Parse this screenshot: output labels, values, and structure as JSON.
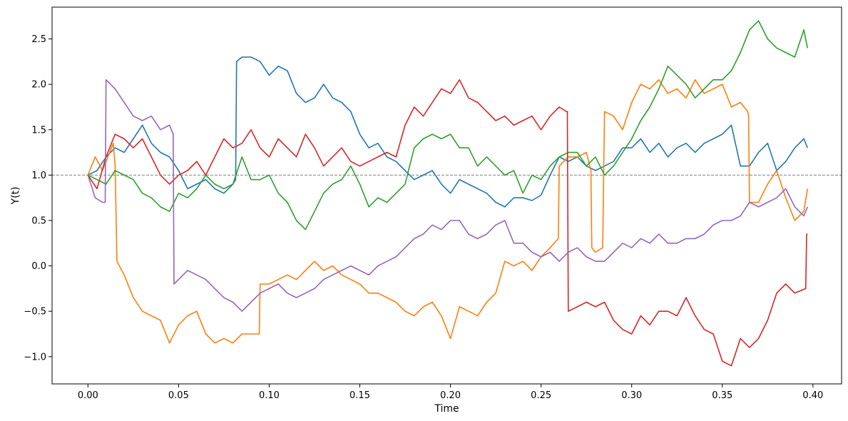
{
  "chart_data": {
    "type": "line",
    "xlabel": "Time",
    "ylabel": "Y(t)",
    "xlim": [
      -0.0198,
      0.4158
    ],
    "ylim": [
      -1.3,
      2.85
    ],
    "xticks": [
      0.0,
      0.05,
      0.1,
      0.15,
      0.2,
      0.25,
      0.3,
      0.35,
      0.4
    ],
    "xtick_labels": [
      "0.00",
      "0.05",
      "0.10",
      "0.15",
      "0.20",
      "0.25",
      "0.30",
      "0.35",
      "0.40"
    ],
    "yticks": [
      -1.0,
      -0.5,
      0.0,
      0.5,
      1.0,
      1.5,
      2.0,
      2.5
    ],
    "ytick_labels": [
      "−1.0",
      "−0.5",
      "0.0",
      "0.5",
      "1.0",
      "1.5",
      "2.0",
      "2.5"
    ],
    "reference_line": {
      "y": 1.0,
      "style": "dashed",
      "color": "#808080"
    },
    "grid": false,
    "series": [
      {
        "color": "#1f77b4",
        "x": [
          0.0,
          0.005,
          0.01,
          0.015,
          0.02,
          0.025,
          0.03,
          0.035,
          0.04,
          0.045,
          0.05,
          0.055,
          0.06,
          0.065,
          0.07,
          0.075,
          0.08,
          0.0815,
          0.082,
          0.085,
          0.09,
          0.095,
          0.1,
          0.105,
          0.11,
          0.115,
          0.12,
          0.125,
          0.13,
          0.135,
          0.14,
          0.145,
          0.15,
          0.155,
          0.16,
          0.165,
          0.17,
          0.175,
          0.18,
          0.185,
          0.19,
          0.195,
          0.2,
          0.205,
          0.21,
          0.215,
          0.22,
          0.225,
          0.23,
          0.235,
          0.24,
          0.245,
          0.25,
          0.255,
          0.26,
          0.265,
          0.27,
          0.275,
          0.28,
          0.285,
          0.29,
          0.295,
          0.3,
          0.305,
          0.31,
          0.315,
          0.32,
          0.325,
          0.33,
          0.335,
          0.34,
          0.345,
          0.35,
          0.355,
          0.36,
          0.365,
          0.37,
          0.375,
          0.38,
          0.385,
          0.39,
          0.395,
          0.397
        ],
        "y": [
          1.0,
          1.05,
          1.2,
          1.3,
          1.25,
          1.4,
          1.55,
          1.35,
          1.25,
          1.2,
          1.05,
          0.85,
          0.9,
          0.95,
          0.85,
          0.8,
          0.9,
          0.95,
          2.25,
          2.3,
          2.3,
          2.25,
          2.1,
          2.2,
          2.15,
          1.9,
          1.8,
          1.85,
          2.0,
          1.85,
          1.8,
          1.7,
          1.45,
          1.3,
          1.35,
          1.2,
          1.15,
          1.05,
          0.95,
          1.0,
          1.05,
          0.9,
          0.8,
          0.95,
          0.9,
          0.85,
          0.8,
          0.7,
          0.65,
          0.75,
          0.75,
          0.72,
          0.78,
          1.0,
          1.2,
          1.15,
          1.2,
          1.1,
          1.05,
          1.1,
          1.15,
          1.3,
          1.3,
          1.4,
          1.25,
          1.35,
          1.2,
          1.3,
          1.35,
          1.25,
          1.35,
          1.4,
          1.45,
          1.55,
          1.1,
          1.1,
          1.25,
          1.35,
          1.05,
          1.15,
          1.3,
          1.4,
          1.3
        ]
      },
      {
        "color": "#ff7f0e",
        "x": [
          0.0,
          0.004,
          0.008,
          0.012,
          0.014,
          0.015,
          0.016,
          0.02,
          0.025,
          0.03,
          0.035,
          0.04,
          0.045,
          0.05,
          0.055,
          0.06,
          0.065,
          0.07,
          0.075,
          0.08,
          0.085,
          0.0945,
          0.095,
          0.1,
          0.105,
          0.11,
          0.115,
          0.12,
          0.125,
          0.13,
          0.135,
          0.14,
          0.145,
          0.15,
          0.155,
          0.16,
          0.165,
          0.17,
          0.175,
          0.18,
          0.185,
          0.19,
          0.195,
          0.2,
          0.205,
          0.21,
          0.215,
          0.22,
          0.225,
          0.23,
          0.235,
          0.24,
          0.245,
          0.25,
          0.255,
          0.2595,
          0.26,
          0.265,
          0.27,
          0.275,
          0.2775,
          0.278,
          0.28,
          0.284,
          0.285,
          0.29,
          0.295,
          0.3,
          0.305,
          0.31,
          0.315,
          0.32,
          0.325,
          0.33,
          0.335,
          0.34,
          0.345,
          0.35,
          0.355,
          0.36,
          0.364,
          0.3645,
          0.365,
          0.37,
          0.375,
          0.38,
          0.385,
          0.39,
          0.395,
          0.397
        ],
        "y": [
          1.0,
          1.2,
          1.05,
          1.25,
          1.35,
          1.1,
          0.05,
          -0.1,
          -0.35,
          -0.5,
          -0.55,
          -0.6,
          -0.85,
          -0.65,
          -0.55,
          -0.5,
          -0.75,
          -0.85,
          -0.8,
          -0.85,
          -0.75,
          -0.75,
          -0.2,
          -0.2,
          -0.15,
          -0.1,
          -0.15,
          -0.05,
          0.05,
          -0.05,
          0.0,
          -0.1,
          -0.15,
          -0.2,
          -0.3,
          -0.3,
          -0.35,
          -0.4,
          -0.5,
          -0.55,
          -0.45,
          -0.4,
          -0.55,
          -0.8,
          -0.45,
          -0.5,
          -0.55,
          -0.4,
          -0.3,
          0.05,
          0.0,
          0.05,
          -0.05,
          0.1,
          0.2,
          0.3,
          1.1,
          1.2,
          1.2,
          1.25,
          1.05,
          0.2,
          0.15,
          0.2,
          1.7,
          1.65,
          1.5,
          1.8,
          2.0,
          1.95,
          2.05,
          1.9,
          1.95,
          1.85,
          2.05,
          1.9,
          1.95,
          2.0,
          1.75,
          1.8,
          1.7,
          1.65,
          0.7,
          0.7,
          0.9,
          1.05,
          0.75,
          0.5,
          0.6,
          0.85
        ]
      },
      {
        "color": "#2ca02c",
        "x": [
          0.0,
          0.005,
          0.01,
          0.015,
          0.02,
          0.025,
          0.03,
          0.035,
          0.04,
          0.045,
          0.05,
          0.055,
          0.06,
          0.065,
          0.07,
          0.075,
          0.08,
          0.085,
          0.09,
          0.095,
          0.1,
          0.105,
          0.11,
          0.115,
          0.12,
          0.125,
          0.13,
          0.135,
          0.14,
          0.145,
          0.15,
          0.155,
          0.16,
          0.165,
          0.17,
          0.175,
          0.18,
          0.185,
          0.19,
          0.195,
          0.2,
          0.205,
          0.21,
          0.215,
          0.22,
          0.225,
          0.23,
          0.235,
          0.24,
          0.245,
          0.25,
          0.255,
          0.26,
          0.265,
          0.27,
          0.275,
          0.28,
          0.285,
          0.29,
          0.295,
          0.3,
          0.305,
          0.31,
          0.315,
          0.32,
          0.325,
          0.33,
          0.335,
          0.34,
          0.345,
          0.35,
          0.355,
          0.36,
          0.365,
          0.37,
          0.375,
          0.38,
          0.385,
          0.39,
          0.395,
          0.397
        ],
        "y": [
          1.0,
          0.95,
          0.9,
          1.05,
          1.0,
          0.95,
          0.8,
          0.75,
          0.65,
          0.6,
          0.8,
          0.75,
          0.85,
          1.0,
          0.9,
          0.85,
          0.9,
          1.2,
          0.95,
          0.95,
          1.0,
          0.8,
          0.7,
          0.5,
          0.4,
          0.6,
          0.8,
          0.9,
          0.95,
          1.1,
          0.9,
          0.65,
          0.75,
          0.7,
          0.8,
          0.9,
          1.3,
          1.4,
          1.45,
          1.4,
          1.45,
          1.3,
          1.3,
          1.1,
          1.2,
          1.1,
          1.0,
          1.05,
          0.8,
          1.0,
          0.95,
          1.1,
          1.2,
          1.25,
          1.25,
          1.1,
          1.2,
          1.0,
          1.1,
          1.25,
          1.4,
          1.6,
          1.75,
          1.95,
          2.2,
          2.1,
          2.0,
          1.85,
          1.95,
          2.05,
          2.05,
          2.15,
          2.35,
          2.6,
          2.7,
          2.5,
          2.4,
          2.35,
          2.3,
          2.6,
          2.4
        ]
      },
      {
        "color": "#d62728",
        "x": [
          0.0,
          0.005,
          0.01,
          0.015,
          0.02,
          0.025,
          0.03,
          0.035,
          0.04,
          0.045,
          0.05,
          0.055,
          0.06,
          0.065,
          0.07,
          0.075,
          0.08,
          0.085,
          0.09,
          0.095,
          0.1,
          0.105,
          0.11,
          0.115,
          0.12,
          0.125,
          0.13,
          0.135,
          0.14,
          0.145,
          0.15,
          0.155,
          0.16,
          0.165,
          0.17,
          0.175,
          0.18,
          0.185,
          0.19,
          0.195,
          0.2,
          0.205,
          0.21,
          0.215,
          0.22,
          0.225,
          0.23,
          0.235,
          0.24,
          0.245,
          0.25,
          0.255,
          0.26,
          0.264,
          0.2645,
          0.265,
          0.27,
          0.275,
          0.28,
          0.285,
          0.29,
          0.295,
          0.3,
          0.305,
          0.31,
          0.315,
          0.32,
          0.325,
          0.33,
          0.335,
          0.34,
          0.345,
          0.35,
          0.355,
          0.36,
          0.365,
          0.37,
          0.375,
          0.38,
          0.385,
          0.39,
          0.396,
          0.3965,
          0.397
        ],
        "y": [
          1.0,
          0.85,
          1.2,
          1.45,
          1.4,
          1.3,
          1.4,
          1.2,
          1.0,
          0.9,
          1.0,
          1.05,
          1.15,
          1.0,
          1.2,
          1.4,
          1.3,
          1.35,
          1.5,
          1.3,
          1.2,
          1.4,
          1.3,
          1.2,
          1.45,
          1.3,
          1.1,
          1.2,
          1.3,
          1.15,
          1.1,
          1.15,
          1.2,
          1.25,
          1.2,
          1.55,
          1.75,
          1.65,
          1.8,
          1.95,
          1.9,
          2.05,
          1.85,
          1.8,
          1.7,
          1.6,
          1.65,
          1.55,
          1.6,
          1.65,
          1.5,
          1.65,
          1.75,
          1.7,
          1.7,
          -0.5,
          -0.45,
          -0.4,
          -0.45,
          -0.4,
          -0.6,
          -0.7,
          -0.75,
          -0.55,
          -0.65,
          -0.5,
          -0.5,
          -0.55,
          -0.35,
          -0.55,
          -0.7,
          -0.75,
          -1.05,
          -1.1,
          -0.8,
          -0.9,
          -0.8,
          -0.6,
          -0.3,
          -0.2,
          -0.3,
          -0.25,
          0.35,
          0.35
        ]
      },
      {
        "color": "#9467bd",
        "x": [
          0.0,
          0.004,
          0.008,
          0.0095,
          0.01,
          0.015,
          0.02,
          0.025,
          0.03,
          0.035,
          0.04,
          0.045,
          0.047,
          0.0475,
          0.05,
          0.055,
          0.06,
          0.065,
          0.07,
          0.075,
          0.08,
          0.085,
          0.09,
          0.095,
          0.1,
          0.105,
          0.11,
          0.115,
          0.12,
          0.125,
          0.13,
          0.135,
          0.14,
          0.145,
          0.15,
          0.155,
          0.16,
          0.165,
          0.17,
          0.175,
          0.18,
          0.185,
          0.19,
          0.195,
          0.2,
          0.205,
          0.21,
          0.215,
          0.22,
          0.225,
          0.23,
          0.235,
          0.24,
          0.245,
          0.25,
          0.255,
          0.26,
          0.265,
          0.27,
          0.275,
          0.28,
          0.285,
          0.29,
          0.295,
          0.3,
          0.305,
          0.31,
          0.315,
          0.32,
          0.325,
          0.33,
          0.335,
          0.34,
          0.345,
          0.35,
          0.355,
          0.36,
          0.365,
          0.37,
          0.375,
          0.38,
          0.385,
          0.39,
          0.395,
          0.397
        ],
        "y": [
          1.0,
          0.75,
          0.7,
          0.7,
          2.05,
          1.95,
          1.8,
          1.65,
          1.6,
          1.65,
          1.5,
          1.55,
          1.45,
          -0.2,
          -0.15,
          -0.05,
          -0.1,
          -0.15,
          -0.25,
          -0.35,
          -0.4,
          -0.5,
          -0.4,
          -0.3,
          -0.25,
          -0.2,
          -0.3,
          -0.35,
          -0.3,
          -0.25,
          -0.15,
          -0.1,
          -0.05,
          0.0,
          -0.05,
          -0.1,
          0.0,
          0.05,
          0.1,
          0.2,
          0.3,
          0.35,
          0.45,
          0.4,
          0.5,
          0.5,
          0.35,
          0.3,
          0.35,
          0.45,
          0.5,
          0.25,
          0.25,
          0.15,
          0.1,
          0.15,
          0.05,
          0.15,
          0.2,
          0.1,
          0.05,
          0.05,
          0.15,
          0.25,
          0.2,
          0.3,
          0.25,
          0.35,
          0.25,
          0.25,
          0.3,
          0.3,
          0.35,
          0.45,
          0.5,
          0.5,
          0.55,
          0.7,
          0.65,
          0.7,
          0.75,
          0.85,
          0.65,
          0.55,
          0.65
        ]
      }
    ]
  }
}
